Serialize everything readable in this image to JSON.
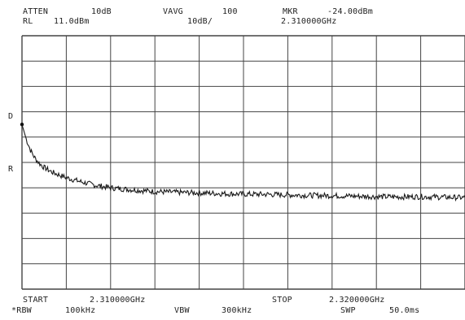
{
  "header": {
    "atten_label": "ATTEN",
    "atten_value": "10dB",
    "vavg_label": "VAVG",
    "vavg_value": "100",
    "mkr_label": "MKR",
    "mkr_value": "-24.00dBm",
    "rl_label": "RL",
    "rl_value": "11.0dBm",
    "scale_value": "10dB/",
    "mkr_freq": "2.310000GHz"
  },
  "side": {
    "d_label": "D",
    "r_label": "R"
  },
  "footer": {
    "start_label": "START",
    "start_value": "2.310000GHz",
    "stop_label": "STOP",
    "stop_value": "2.320000GHz",
    "rbw_label": "*RBW",
    "rbw_value": "100kHz",
    "vbw_label": "VBW",
    "vbw_value": "300kHz",
    "swp_label": "SWP",
    "swp_value": "50.0ms"
  },
  "chart_data": {
    "type": "line",
    "xlim": [
      2.31,
      2.32
    ],
    "x_unit": "GHz",
    "ref_level_dbm": 11.0,
    "scale_db_per_div": 10,
    "ylim": [
      -89.0,
      11.0
    ],
    "y_unit": "dBm",
    "grid": true,
    "grid_divisions": {
      "x": 10,
      "y": 10
    },
    "marker": {
      "x": 2.31,
      "y": -24.0
    },
    "series": [
      {
        "x": [
          2.31,
          2.3101,
          2.3102,
          2.3103,
          2.3104,
          2.3105,
          2.3107,
          2.311,
          2.3113,
          2.3116,
          2.312,
          2.3125,
          2.313,
          2.3135,
          2.314,
          2.3145,
          2.315,
          2.3155,
          2.316,
          2.3165,
          2.317,
          2.3175,
          2.318,
          2.3185,
          2.319,
          2.3195,
          2.32
        ],
        "y": [
          -24.0,
          -30.0,
          -34.5,
          -37.5,
          -39.5,
          -41.0,
          -43.0,
          -45.0,
          -46.5,
          -47.8,
          -49.0,
          -49.8,
          -50.5,
          -50.8,
          -51.0,
          -51.3,
          -51.5,
          -51.6,
          -51.8,
          -52.0,
          -52.1,
          -52.3,
          -52.5,
          -52.6,
          -52.5,
          -52.7,
          -52.9
        ]
      }
    ]
  }
}
